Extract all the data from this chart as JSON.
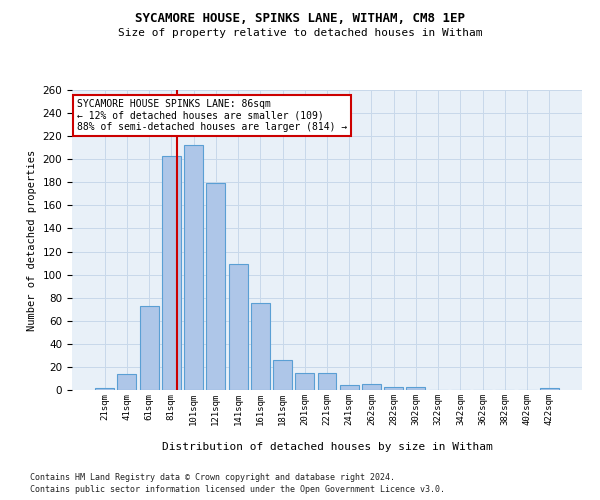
{
  "title1": "SYCAMORE HOUSE, SPINKS LANE, WITHAM, CM8 1EP",
  "title2": "Size of property relative to detached houses in Witham",
  "xlabel": "Distribution of detached houses by size in Witham",
  "ylabel": "Number of detached properties",
  "categories": [
    "21sqm",
    "41sqm",
    "61sqm",
    "81sqm",
    "101sqm",
    "121sqm",
    "141sqm",
    "161sqm",
    "181sqm",
    "201sqm",
    "221sqm",
    "241sqm",
    "262sqm",
    "282sqm",
    "302sqm",
    "322sqm",
    "342sqm",
    "362sqm",
    "382sqm",
    "402sqm",
    "422sqm"
  ],
  "values": [
    2,
    14,
    73,
    203,
    212,
    179,
    109,
    75,
    26,
    15,
    15,
    4,
    5,
    3,
    3,
    0,
    0,
    0,
    0,
    0,
    2
  ],
  "bar_color": "#aec6e8",
  "bar_edge_color": "#5a9fd4",
  "red_line_index": 3.25,
  "marker_label_line1": "SYCAMORE HOUSE SPINKS LANE: 86sqm",
  "marker_label_line2": "← 12% of detached houses are smaller (109)",
  "marker_label_line3": "88% of semi-detached houses are larger (814) →",
  "annotation_box_color": "#ffffff",
  "annotation_border_color": "#cc0000",
  "red_line_color": "#cc0000",
  "grid_color": "#c8d8ea",
  "bg_color": "#e8f0f8",
  "ylim": [
    0,
    260
  ],
  "yticks": [
    0,
    20,
    40,
    60,
    80,
    100,
    120,
    140,
    160,
    180,
    200,
    220,
    240,
    260
  ],
  "footnote1": "Contains HM Land Registry data © Crown copyright and database right 2024.",
  "footnote2": "Contains public sector information licensed under the Open Government Licence v3.0."
}
